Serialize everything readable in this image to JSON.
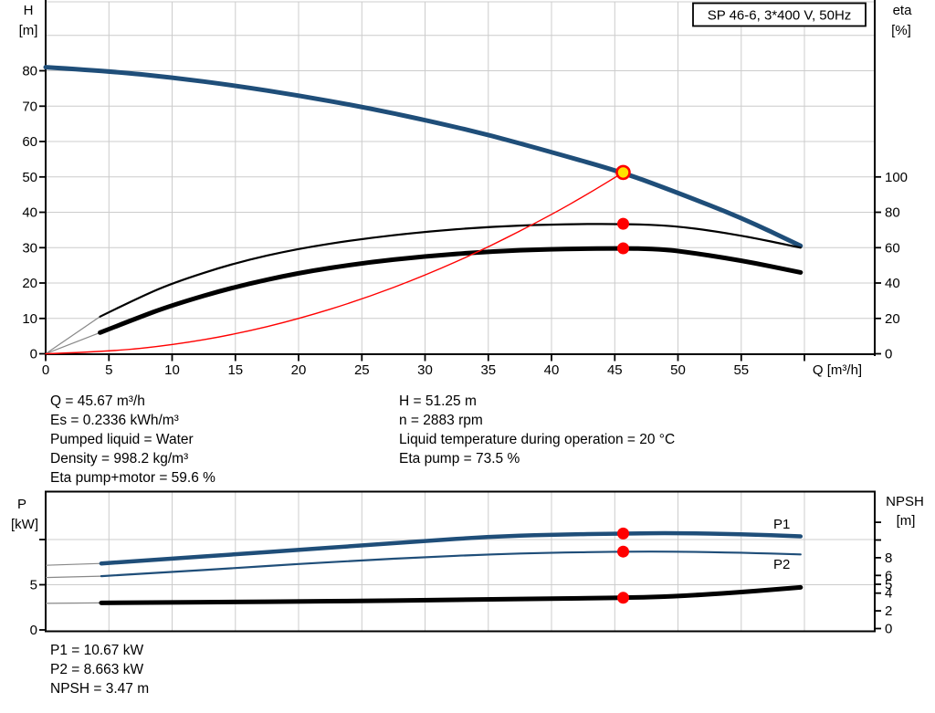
{
  "operating_point_info": {
    "left": [
      "Q = 45.67 m³/h",
      "Es = 0.2336 kWh/m³",
      "Pumped liquid = Water",
      "Density = 998.2 kg/m³",
      "Eta pump+motor = 59.6 %"
    ],
    "right": [
      "H = 51.25 m",
      "n = 2883 rpm",
      "Liquid temperature during operation = 20 °C",
      "Eta pump = 73.5 %"
    ]
  },
  "power_info": {
    "lines": [
      "P1 = 10.67 kW",
      "P2 = 8.663 kW",
      "NPSH = 3.47 m"
    ]
  },
  "colors": {
    "curve_blue": "#1F4E79",
    "curve_black": "#000000",
    "curve_red": "#FF0000",
    "duty_point_fill": "#FFE000",
    "marker_red": "#FF0000",
    "grid": "#CCCCCC",
    "lead_gray": "#888888",
    "axis": "#000000"
  },
  "chart_data": [
    {
      "id": "qh-eta-chart",
      "type": "line",
      "title": "SP 46-6, 3*400 V, 50Hz",
      "x_axis": {
        "label": "Q [m³/h]",
        "min": 0,
        "max": 65.5,
        "labeled_ticks": [
          0,
          5,
          10,
          15,
          20,
          25,
          30,
          35,
          40,
          45,
          50,
          55
        ],
        "unlabeled_ticks": [
          60
        ],
        "gridlines": [
          5,
          10,
          15,
          20,
          25,
          30,
          35,
          40,
          45,
          50,
          55,
          60
        ]
      },
      "y_left": {
        "label_lines": [
          "H",
          "[m]"
        ],
        "min": 0,
        "max": 100,
        "ticks": [
          0,
          10,
          20,
          30,
          40,
          50,
          60,
          70,
          80
        ],
        "gridlines": [
          10,
          20,
          30,
          40,
          50,
          60,
          70,
          80,
          90
        ]
      },
      "y_right": {
        "label_lines": [
          "eta",
          "[%]"
        ],
        "min": 0,
        "max": 200,
        "ticks": [
          0,
          20,
          40,
          60,
          80,
          100
        ],
        "unlabeled_ticks": []
      },
      "series": [
        {
          "name": "head",
          "display": "QH curve",
          "axis": "left",
          "color": "#1F4E79",
          "width": 5,
          "points": [
            [
              0,
              81
            ],
            [
              5,
              79.9
            ],
            [
              10,
              78.1
            ],
            [
              15,
              75.8
            ],
            [
              20,
              73
            ],
            [
              25,
              69.8
            ],
            [
              30,
              66.1
            ],
            [
              35,
              61.9
            ],
            [
              40,
              57
            ],
            [
              45.67,
              51.25
            ],
            [
              50,
              45.5
            ],
            [
              55,
              38.5
            ],
            [
              59.7,
              30.5
            ]
          ],
          "lead": [
            [
              0,
              81
            ],
            [
              4.6,
              79.85
            ]
          ]
        },
        {
          "name": "eta-pump",
          "display": "Eta pump",
          "axis": "right",
          "color": "#000000",
          "width": 2.2,
          "points": [
            [
              4.3,
              21
            ],
            [
              7,
              30.5
            ],
            [
              10,
              40
            ],
            [
              15,
              51.5
            ],
            [
              20,
              59.5
            ],
            [
              25,
              65
            ],
            [
              30,
              69
            ],
            [
              35,
              71.8
            ],
            [
              40,
              73.2
            ],
            [
              45.67,
              73.5
            ],
            [
              50,
              72.3
            ],
            [
              55,
              67
            ],
            [
              59.7,
              60
            ]
          ],
          "lead": [
            [
              0,
              0
            ],
            [
              4.3,
              21
            ]
          ]
        },
        {
          "name": "eta-pump-motor",
          "display": "Eta pump+motor",
          "axis": "right",
          "color": "#000000",
          "width": 5,
          "points": [
            [
              4.3,
              12
            ],
            [
              7,
              19.5
            ],
            [
              10,
              27.5
            ],
            [
              15,
              38
            ],
            [
              20,
              45.8
            ],
            [
              25,
              51.3
            ],
            [
              30,
              55.2
            ],
            [
              35,
              57.8
            ],
            [
              40,
              59.2
            ],
            [
              45.67,
              59.6
            ],
            [
              48,
              59.3
            ],
            [
              50,
              58.3
            ],
            [
              55,
              52.8
            ],
            [
              59.7,
              46
            ]
          ],
          "lead": [
            [
              0,
              0
            ],
            [
              4.3,
              12
            ]
          ]
        },
        {
          "name": "system-curve",
          "display": "System curve",
          "axis": "left",
          "color": "#FF0000",
          "width": 1.4,
          "points": [
            [
              0,
              0
            ],
            [
              5,
              0.61
            ],
            [
              10,
              2.46
            ],
            [
              15,
              5.53
            ],
            [
              20,
              9.83
            ],
            [
              25,
              15.36
            ],
            [
              30,
              22.11
            ],
            [
              35,
              30.1
            ],
            [
              40,
              39.31
            ],
            [
              43,
              45.42
            ],
            [
              45.67,
              51.25
            ]
          ]
        }
      ],
      "markers": [
        {
          "series": "head",
          "q": 45.67,
          "value": 51.25,
          "type": "duty"
        },
        {
          "series": "eta-pump",
          "q": 45.67,
          "value": 73.5,
          "type": "dot"
        },
        {
          "series": "eta-pump-motor",
          "q": 45.67,
          "value": 59.6,
          "type": "dot"
        }
      ]
    },
    {
      "id": "power-npsh-chart",
      "type": "line",
      "x_axis": {
        "label": "",
        "min": 0,
        "max": 65.5,
        "labeled_ticks": [],
        "unlabeled_ticks": [],
        "gridlines": [
          5,
          10,
          15,
          20,
          25,
          30,
          35,
          40,
          45,
          50,
          55,
          60
        ]
      },
      "y_left": {
        "label_lines": [
          "P",
          "[kW]"
        ],
        "min": 0,
        "max": 15,
        "ticks": [
          0,
          5
        ],
        "extra_ticks": [
          10
        ],
        "gridlines": [
          5,
          10
        ]
      },
      "y_right": {
        "label_lines": [
          "NPSH",
          "[m]"
        ],
        "min": 0,
        "max": 15,
        "ticks": [
          0,
          2,
          4,
          5,
          6,
          8
        ],
        "unlabeled_ticks": [
          10,
          12
        ]
      },
      "series": [
        {
          "name": "p1",
          "display": "P1",
          "axis": "left",
          "color": "#1F4E79",
          "width": 4.5,
          "points": [
            [
              4.4,
              7.35
            ],
            [
              10,
              7.9
            ],
            [
              15,
              8.35
            ],
            [
              20,
              8.85
            ],
            [
              25,
              9.35
            ],
            [
              30,
              9.85
            ],
            [
              35,
              10.3
            ],
            [
              40,
              10.55
            ],
            [
              45.67,
              10.67
            ],
            [
              50,
              10.72
            ],
            [
              55,
              10.6
            ],
            [
              59.7,
              10.35
            ]
          ],
          "lead": [
            [
              0,
              7.15
            ],
            [
              4.4,
              7.35
            ]
          ]
        },
        {
          "name": "p2",
          "display": "P2",
          "axis": "left",
          "color": "#1F4E79",
          "width": 2.2,
          "points": [
            [
              4.4,
              5.95
            ],
            [
              10,
              6.4
            ],
            [
              15,
              6.85
            ],
            [
              20,
              7.3
            ],
            [
              25,
              7.7
            ],
            [
              30,
              8.05
            ],
            [
              35,
              8.35
            ],
            [
              40,
              8.55
            ],
            [
              45.67,
              8.663
            ],
            [
              50,
              8.67
            ],
            [
              55,
              8.55
            ],
            [
              59.7,
              8.35
            ]
          ],
          "lead": [
            [
              0,
              5.8
            ],
            [
              4.4,
              5.95
            ]
          ]
        },
        {
          "name": "npsh",
          "display": "NPSH",
          "axis": "right",
          "color": "#000000",
          "width": 5,
          "points": [
            [
              4.4,
              2.9
            ],
            [
              10,
              2.95
            ],
            [
              15,
              3
            ],
            [
              20,
              3.05
            ],
            [
              25,
              3.12
            ],
            [
              30,
              3.2
            ],
            [
              35,
              3.3
            ],
            [
              40,
              3.38
            ],
            [
              45.67,
              3.47
            ],
            [
              50,
              3.65
            ],
            [
              55,
              4.1
            ],
            [
              59.7,
              4.65
            ]
          ],
          "lead": [
            [
              0,
              2.85
            ],
            [
              4.4,
              2.9
            ]
          ]
        }
      ],
      "markers": [
        {
          "series": "p1",
          "q": 45.67,
          "value": 10.67,
          "type": "dot"
        },
        {
          "series": "p2",
          "q": 45.67,
          "value": 8.663,
          "type": "dot"
        },
        {
          "series": "npsh",
          "q": 45.67,
          "value": 3.47,
          "type": "dot"
        }
      ]
    }
  ]
}
